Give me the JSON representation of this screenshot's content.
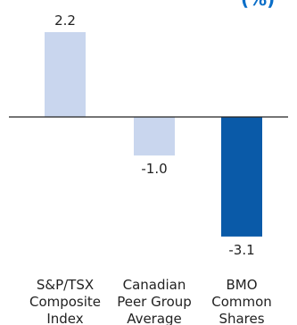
{
  "chart_data": {
    "type": "bar",
    "categories": [
      [
        "S&P/TSX",
        "Composite",
        "Index"
      ],
      [
        "Canadian",
        "Peer Group",
        "Average"
      ],
      [
        "BMO",
        "Common",
        "Shares"
      ]
    ],
    "values": [
      2.2,
      -1.0,
      -3.1
    ],
    "value_labels": [
      "2.2",
      "-1.0",
      "-3.1"
    ],
    "ylim": [
      -3.6,
      2.6
    ],
    "colors": [
      "#c9d6ee",
      "#c9d6ee",
      "#0a5aa8"
    ],
    "axis_color": "#222222",
    "fragment_text": "(%)"
  }
}
